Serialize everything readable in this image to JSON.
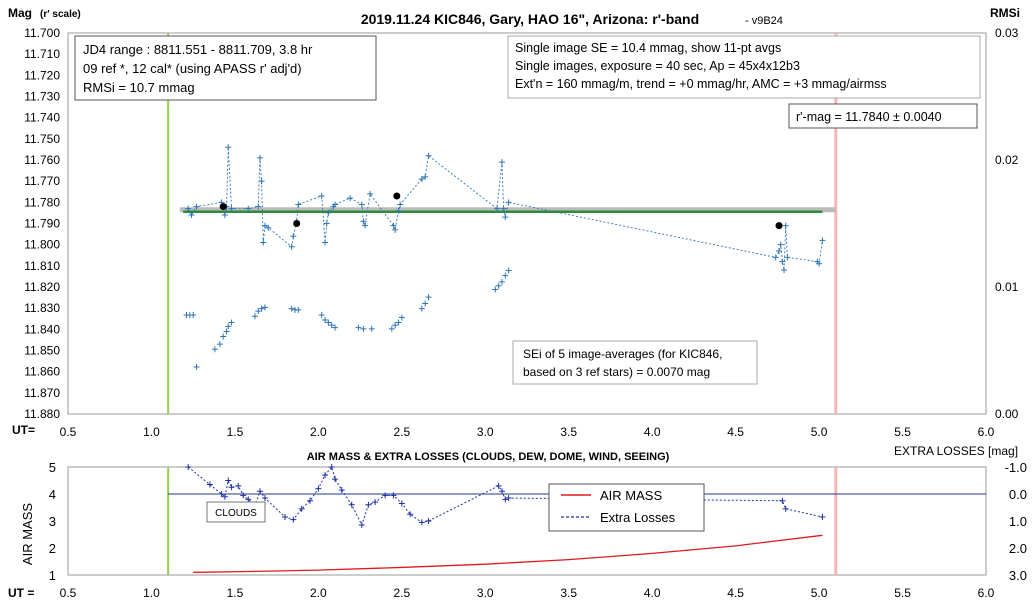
{
  "chart_data": [
    {
      "type": "scatter",
      "title": "2019.11.24 KIC846, Gary, HAO 16\", Arizona: r'-band",
      "subtitle": "- v9B24",
      "ylabel": "Mag",
      "ylabel_sub": "(r' scale)",
      "y2label": "RMSi",
      "xlabel": "UT=",
      "xlim": [
        0.5,
        6.0
      ],
      "ylim": [
        11.88,
        11.7
      ],
      "y2lim": [
        0.0,
        0.03
      ],
      "x_ticks": [
        "0.5",
        "1.0",
        "1.5",
        "2.0",
        "2.5",
        "3.0",
        "3.5",
        "4.0",
        "4.5",
        "5.0",
        "5.5",
        "6.0"
      ],
      "y_ticks": [
        "11.700",
        "11.710",
        "11.720",
        "11.730",
        "11.740",
        "11.750",
        "11.760",
        "11.770",
        "11.780",
        "11.790",
        "11.800",
        "11.810",
        "11.820",
        "11.830",
        "11.840",
        "11.850",
        "11.860",
        "11.870",
        "11.880"
      ],
      "y2_ticks": [
        "0.03",
        "0.02",
        "0.01",
        "0.00"
      ],
      "colors": {
        "target": "#2e75b6",
        "avg": "#000000",
        "fit": "#2e8b3a",
        "ref_band": "#bbbbbb",
        "start_line": "#92d050",
        "end_line": "#f4b6b6"
      },
      "start_ut": 1.1,
      "end_ut": 5.1,
      "fit_mag": 11.784,
      "target_series": {
        "name": "KIC846 single images",
        "points": [
          [
            1.22,
            11.783
          ],
          [
            1.24,
            11.786
          ],
          [
            1.27,
            11.782
          ],
          [
            1.42,
            11.78
          ],
          [
            1.44,
            11.786
          ],
          [
            1.45,
            11.782
          ],
          [
            1.46,
            11.754
          ],
          [
            1.48,
            11.783
          ],
          [
            1.58,
            11.783
          ],
          [
            1.64,
            11.782
          ],
          [
            1.65,
            11.759
          ],
          [
            1.66,
            11.77
          ],
          [
            1.67,
            11.799
          ],
          [
            1.68,
            11.791
          ],
          [
            1.7,
            11.792
          ],
          [
            1.84,
            11.801
          ],
          [
            1.85,
            11.796
          ],
          [
            1.87,
            11.789
          ],
          [
            1.88,
            11.781
          ],
          [
            2.02,
            11.777
          ],
          [
            2.04,
            11.799
          ],
          [
            2.05,
            11.79
          ],
          [
            2.06,
            11.785
          ],
          [
            2.09,
            11.782
          ],
          [
            2.1,
            11.781
          ],
          [
            2.19,
            11.778
          ],
          [
            2.26,
            11.781
          ],
          [
            2.27,
            11.789
          ],
          [
            2.28,
            11.791
          ],
          [
            2.31,
            11.776
          ],
          [
            2.45,
            11.791
          ],
          [
            2.46,
            11.793
          ],
          [
            2.48,
            11.784
          ],
          [
            2.49,
            11.781
          ],
          [
            2.62,
            11.769
          ],
          [
            2.64,
            11.768
          ],
          [
            2.66,
            11.758
          ],
          [
            3.07,
            11.783
          ],
          [
            3.1,
            11.761
          ],
          [
            3.11,
            11.783
          ],
          [
            3.12,
            11.787
          ],
          [
            3.14,
            11.78
          ],
          [
            4.74,
            11.806
          ],
          [
            4.76,
            11.803
          ],
          [
            4.77,
            11.8
          ],
          [
            4.78,
            11.808
          ],
          [
            4.79,
            11.812
          ],
          [
            4.8,
            11.791
          ],
          [
            4.81,
            11.806
          ],
          [
            4.99,
            11.808
          ],
          [
            5.0,
            11.809
          ],
          [
            5.02,
            11.798
          ]
        ]
      },
      "averages": {
        "name": "11-pt avgs",
        "points": [
          [
            1.43,
            11.782
          ],
          [
            1.87,
            11.79
          ],
          [
            2.47,
            11.777
          ],
          [
            4.76,
            11.791
          ]
        ]
      },
      "rms_series": {
        "name": "RMSi",
        "points": [
          [
            1.21,
            0.0078
          ],
          [
            1.23,
            0.0078
          ],
          [
            1.25,
            0.0078
          ],
          [
            1.27,
            0.0037
          ],
          [
            1.38,
            0.0051
          ],
          [
            1.41,
            0.0055
          ],
          [
            1.43,
            0.0061
          ],
          [
            1.45,
            0.0065
          ],
          [
            1.46,
            0.0069
          ],
          [
            1.48,
            0.0072
          ],
          [
            1.62,
            0.0077
          ],
          [
            1.64,
            0.0081
          ],
          [
            1.66,
            0.0083
          ],
          [
            1.68,
            0.0084
          ],
          [
            1.84,
            0.0083
          ],
          [
            1.86,
            0.0082
          ],
          [
            1.88,
            0.0082
          ],
          [
            2.02,
            0.0078
          ],
          [
            2.04,
            0.0074
          ],
          [
            2.06,
            0.0072
          ],
          [
            2.08,
            0.007
          ],
          [
            2.1,
            0.0068
          ],
          [
            2.24,
            0.0068
          ],
          [
            2.27,
            0.0067
          ],
          [
            2.32,
            0.0067
          ],
          [
            2.44,
            0.0067
          ],
          [
            2.46,
            0.007
          ],
          [
            2.48,
            0.0072
          ],
          [
            2.5,
            0.0076
          ],
          [
            2.62,
            0.0083
          ],
          [
            2.64,
            0.0087
          ],
          [
            2.66,
            0.0092
          ],
          [
            3.06,
            0.0098
          ],
          [
            3.08,
            0.0101
          ],
          [
            3.1,
            0.0104
          ],
          [
            3.12,
            0.0109
          ],
          [
            3.14,
            0.0113
          ]
        ]
      },
      "infobox_left": [
        "JD4 range : 8811.551 - 8811.709,  3.8  hr",
        "09 ref *, 12 cal* (using APASS r' adj'd)",
        "RMSi = 10.7 mmag"
      ],
      "infobox_right": [
        "Single image SE = 10.4 mmag, show  11-pt avgs",
        "Single images, exposure = 40 sec, Ap = 45x4x12b3",
        "Ext'n = 160 mmag/m, trend =  +0 mmag/hr, AMC = +3 mmag/airmss"
      ],
      "result_box": "r'-mag = 11.7840 ± 0.0040",
      "sei_box": [
        "SEi of 5 image-averages (for KIC846,",
        "based on 3 ref stars) = 0.0070 mag"
      ]
    },
    {
      "type": "line",
      "title": "AIR MASS & EXTRA LOSSES (CLOUDS, DEW, DOME, WIND, SEEING)",
      "ylabel": "AIR MASS",
      "y2label": "EXTRA LOSSES [mag]",
      "xlabel": "UT =",
      "xlim": [
        0.5,
        6.0
      ],
      "ylim": [
        1,
        5
      ],
      "y2lim": [
        3.0,
        -1.0
      ],
      "x_ticks": [
        "0.5",
        "1.0",
        "1.5",
        "2.0",
        "2.5",
        "3.0",
        "3.5",
        "4.0",
        "4.5",
        "5.0",
        "5.5",
        "6.0"
      ],
      "y_ticks": [
        "1",
        "2",
        "3",
        "4",
        "5"
      ],
      "y2_ticks": [
        "-1.0",
        "0.0",
        "1.0",
        "2.0",
        "3.0"
      ],
      "annotation": "CLOUDS",
      "colors": {
        "airmass": "#e0191b",
        "losses": "#1f2ea8",
        "zero": "#1f3a8a"
      },
      "series": [
        {
          "name": "AIR MASS",
          "points": [
            [
              1.25,
              1.1
            ],
            [
              1.5,
              1.12
            ],
            [
              2.0,
              1.18
            ],
            [
              2.5,
              1.28
            ],
            [
              3.0,
              1.4
            ],
            [
              3.5,
              1.57
            ],
            [
              4.0,
              1.8
            ],
            [
              4.5,
              2.08
            ],
            [
              5.02,
              2.47
            ]
          ]
        },
        {
          "name": "Extra Losses",
          "points": [
            [
              1.22,
              -1.0
            ],
            [
              1.35,
              -0.35
            ],
            [
              1.42,
              0.0
            ],
            [
              1.44,
              0.1
            ],
            [
              1.46,
              -0.5
            ],
            [
              1.48,
              -0.25
            ],
            [
              1.52,
              -0.3
            ],
            [
              1.55,
              0.05
            ],
            [
              1.58,
              0.2
            ],
            [
              1.62,
              0.45
            ],
            [
              1.65,
              -0.1
            ],
            [
              1.68,
              0.15
            ],
            [
              1.8,
              0.85
            ],
            [
              1.85,
              0.95
            ],
            [
              1.9,
              0.55
            ],
            [
              1.95,
              0.25
            ],
            [
              2.0,
              -0.2
            ],
            [
              2.04,
              -0.7
            ],
            [
              2.08,
              -1.0
            ],
            [
              2.1,
              -0.55
            ],
            [
              2.14,
              -0.15
            ],
            [
              2.2,
              0.4
            ],
            [
              2.26,
              1.15
            ],
            [
              2.3,
              0.4
            ],
            [
              2.34,
              0.3
            ],
            [
              2.4,
              0.05
            ],
            [
              2.45,
              0.05
            ],
            [
              2.5,
              0.35
            ],
            [
              2.55,
              0.75
            ],
            [
              2.62,
              1.05
            ],
            [
              2.66,
              1.0
            ],
            [
              3.08,
              -0.3
            ],
            [
              3.1,
              -0.1
            ],
            [
              3.12,
              0.2
            ],
            [
              3.14,
              0.15
            ],
            [
              4.78,
              0.25
            ],
            [
              4.8,
              0.55
            ],
            [
              5.02,
              0.85
            ]
          ]
        }
      ],
      "zero_line": 0.0
    }
  ]
}
